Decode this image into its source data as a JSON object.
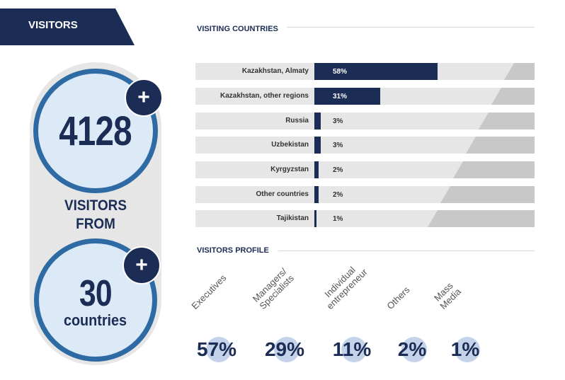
{
  "header": {
    "title": "VISITORS"
  },
  "summary": {
    "visitors": "4128",
    "plus": "+",
    "middle_line1": "VISITORS",
    "middle_line2": "FROM",
    "countries_count": "30",
    "countries_label": "countries"
  },
  "colors": {
    "navy": "#1c2d55",
    "ring_blue": "#2e6aa3",
    "circle_fill": "#dce9f7",
    "track": "#e6e6e6"
  },
  "chart_data": [
    {
      "type": "bar",
      "title": "VISITING COUNTRIES",
      "orientation": "horizontal",
      "unit": "%",
      "categories": [
        "Kazakhstan, Almaty",
        "Kazakhstan, other regions",
        "Russia",
        "Uzbekistan",
        "Kyrgyzstan",
        "Other countries",
        "Tajikistan"
      ],
      "values": [
        58,
        31,
        3,
        3,
        2,
        2,
        1
      ],
      "labels": [
        "58%",
        "31%",
        "3%",
        "3%",
        "2%",
        "2%",
        "1%"
      ]
    },
    {
      "type": "table",
      "title": "VISITORS PROFILE",
      "categories": [
        "Executives",
        "Managers/\nSpecialists",
        "Individual\nentrepreneur",
        "Others",
        "Mass\nMedia"
      ],
      "values": [
        57,
        29,
        11,
        2,
        1
      ],
      "labels": [
        "57%",
        "29%",
        "11%",
        "2%",
        "1%"
      ]
    }
  ]
}
